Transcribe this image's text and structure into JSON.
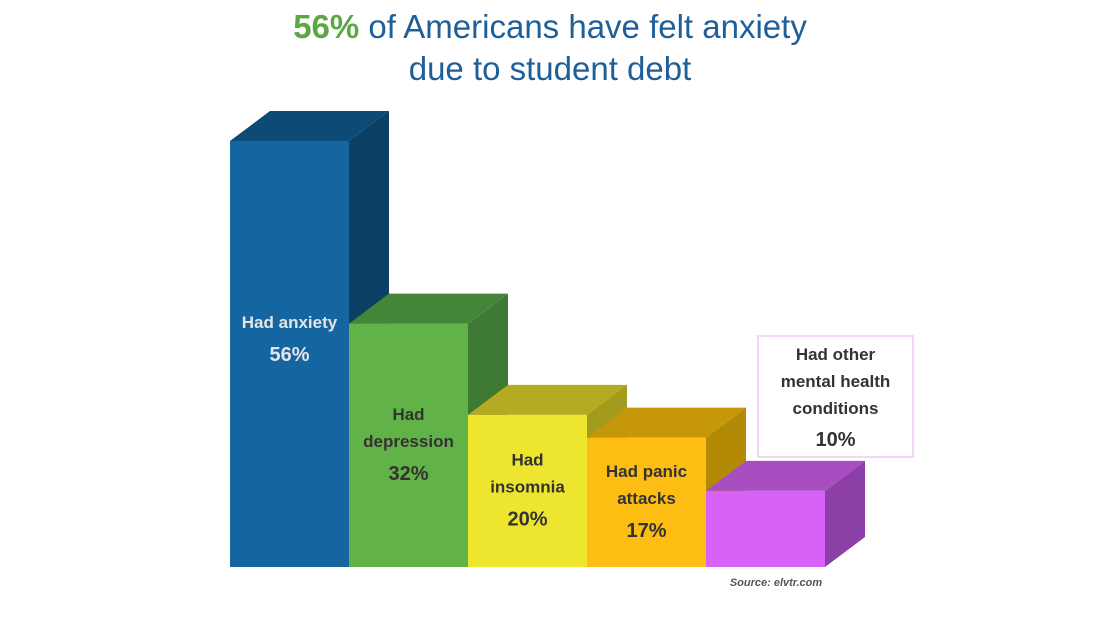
{
  "title": {
    "highlight": "56%",
    "line1_rest": " of Americans have felt anxiety",
    "line2": "due to student debt"
  },
  "source": "Source: elvtr.com",
  "chart_data": {
    "type": "bar",
    "title": "56% of Americans have felt anxiety due to student debt",
    "categories": [
      "Had anxiety",
      "Had depression",
      "Had insomnia",
      "Had panic attacks",
      "Had other mental health conditions"
    ],
    "values": [
      56,
      32,
      20,
      17,
      10
    ],
    "value_labels": [
      "56%",
      "32%",
      "20%",
      "17%",
      "10%"
    ],
    "label_lines": [
      [
        "Had anxiety"
      ],
      [
        "Had",
        "depression"
      ],
      [
        "Had",
        "insomnia"
      ],
      [
        "Had panic",
        "attacks"
      ],
      [
        "Had other",
        "mental health",
        "conditions"
      ]
    ],
    "colors": {
      "front": [
        "#1565a0",
        "#62b347",
        "#eee52f",
        "#fdbd12",
        "#d861f7"
      ],
      "top": [
        "#0d4a75",
        "#45853a",
        "#b4ab22",
        "#c69708",
        "#a94ec1"
      ],
      "side": [
        "#0b3f66",
        "#3f7a34",
        "#a29b1c",
        "#b38a06",
        "#8d3fa8"
      ],
      "label_text": [
        "#e5e5e5",
        "#333333",
        "#333333",
        "#333333",
        "#333333"
      ]
    },
    "ylim": [
      0,
      56
    ],
    "xlabel": "",
    "ylabel": ""
  }
}
